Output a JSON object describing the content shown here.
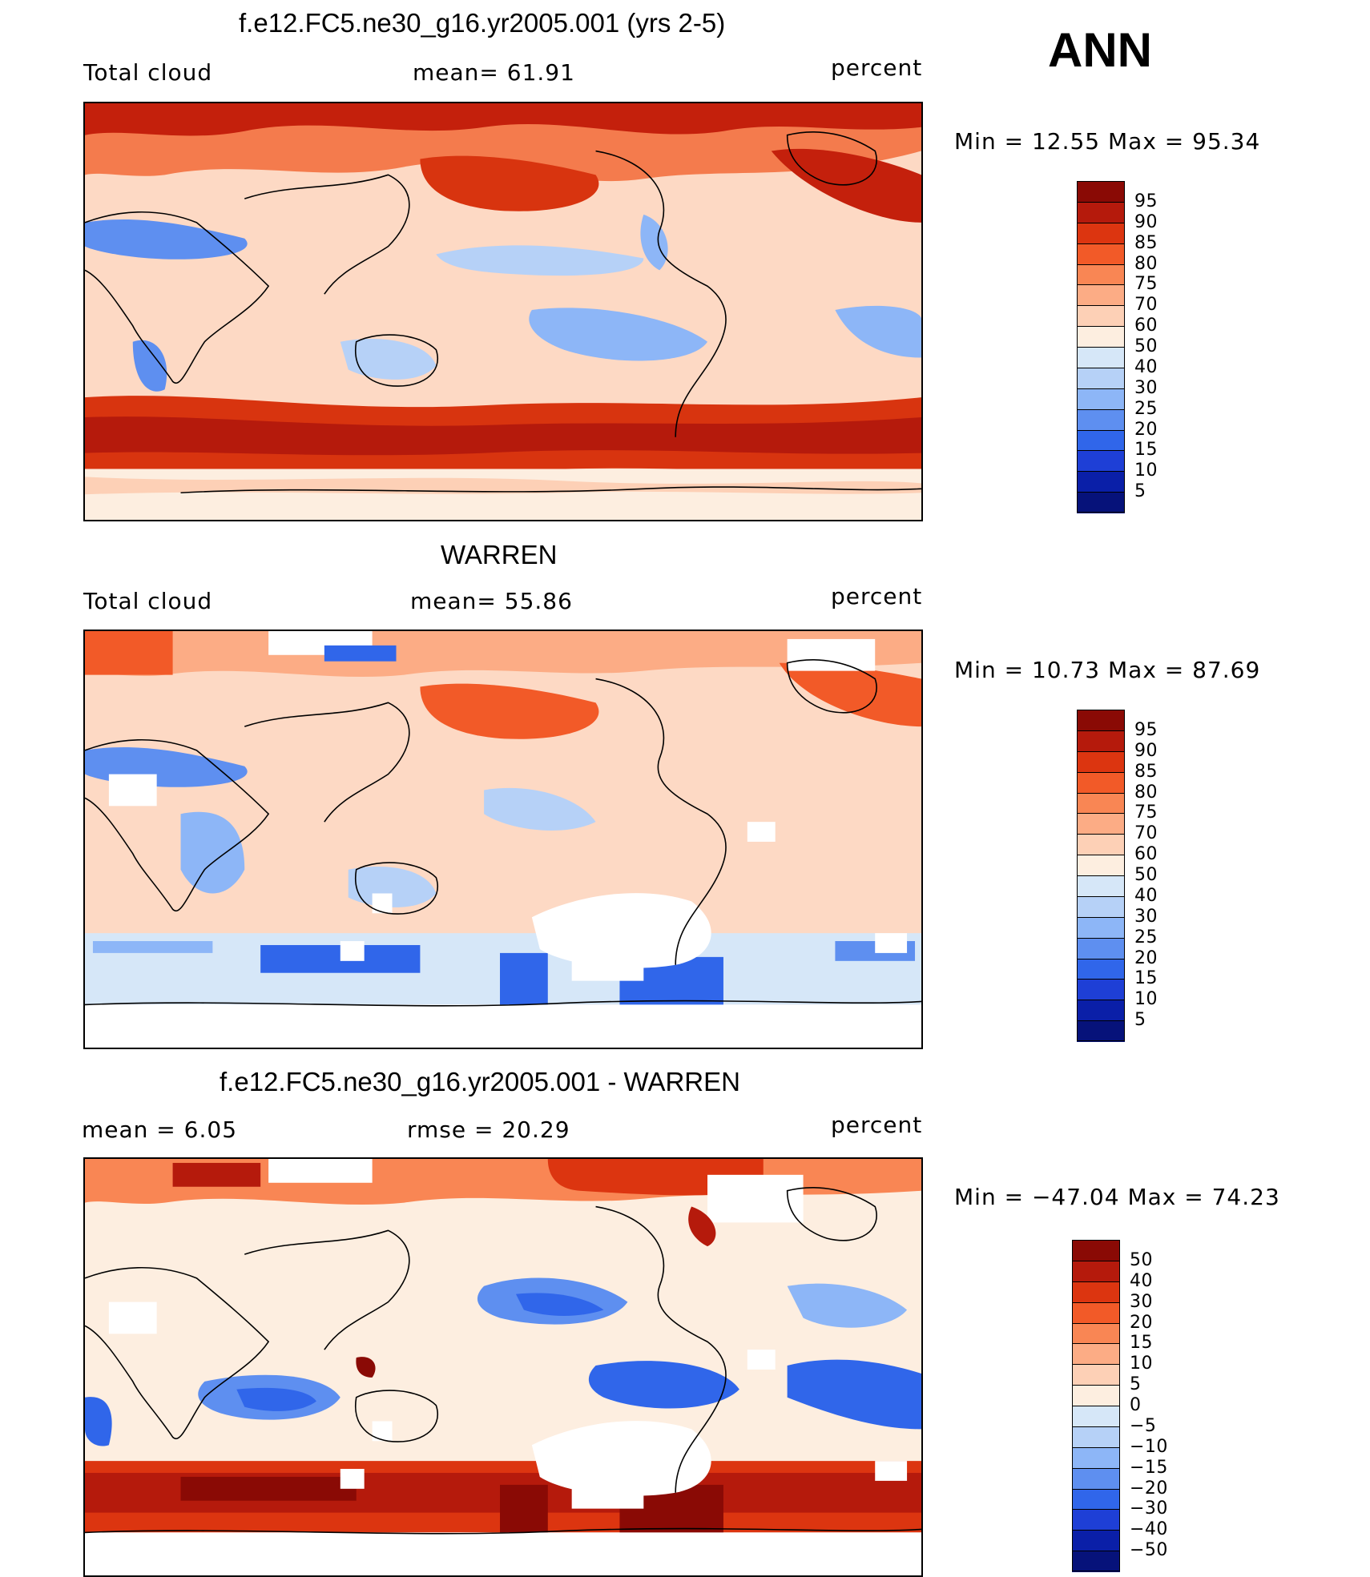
{
  "season": "ANN",
  "panels": [
    {
      "id": "model",
      "title": "f.e12.FC5.ne30_g16.yr2005.001 (yrs 2-5)",
      "left_label": "Total cloud",
      "center_label": "mean=   61.91",
      "right_label": "percent",
      "minmax": "Min  =   12.55  Max  =    95.34",
      "colorbar": {
        "labels": [
          "95",
          "90",
          "85",
          "80",
          "75",
          "70",
          "60",
          "50",
          "40",
          "30",
          "25",
          "20",
          "15",
          "10",
          "5"
        ],
        "colors": [
          "#8a0a05",
          "#b51a0c",
          "#dc3510",
          "#f25a28",
          "#f98654",
          "#fcac85",
          "#fdd0b6",
          "#fdeee0",
          "#d6e7f8",
          "#b6d1f7",
          "#8db6f7",
          "#5e8ff0",
          "#3066ea",
          "#1e3fd6",
          "#0a1fa8",
          "#06127a"
        ]
      }
    },
    {
      "id": "obs",
      "title": "WARREN",
      "left_label": "Total cloud",
      "center_label": "mean=   55.86",
      "right_label": "percent",
      "minmax": "Min  =   10.73  Max  =    87.69",
      "colorbar": {
        "labels": [
          "95",
          "90",
          "85",
          "80",
          "75",
          "70",
          "60",
          "50",
          "40",
          "30",
          "25",
          "20",
          "15",
          "10",
          "5"
        ],
        "colors": [
          "#8a0a05",
          "#b51a0c",
          "#dc3510",
          "#f25a28",
          "#f98654",
          "#fcac85",
          "#fdd0b6",
          "#fdeee0",
          "#d6e7f8",
          "#b6d1f7",
          "#8db6f7",
          "#5e8ff0",
          "#3066ea",
          "#1e3fd6",
          "#0a1fa8",
          "#06127a"
        ]
      }
    },
    {
      "id": "diff",
      "title": "f.e12.FC5.ne30_g16.yr2005.001 - WARREN",
      "left_label": "mean  =      6.05",
      "center_label": "rmse  =    20.29",
      "right_label": "percent",
      "minmax": "Min  = −47.04  Max  =    74.23",
      "colorbar": {
        "labels": [
          "50",
          "40",
          "30",
          "20",
          "15",
          "10",
          "5",
          "0",
          "−5",
          "−10",
          "−15",
          "−20",
          "−30",
          "−40",
          "−50"
        ],
        "colors": [
          "#8a0a05",
          "#b51a0c",
          "#dc3510",
          "#f25a28",
          "#f98654",
          "#fcac85",
          "#fdd0b6",
          "#fdeee0",
          "#d6e7f8",
          "#b6d1f7",
          "#8db6f7",
          "#5e8ff0",
          "#3066ea",
          "#1e3fd6",
          "#0a1fa8",
          "#06127a"
        ]
      }
    }
  ]
}
